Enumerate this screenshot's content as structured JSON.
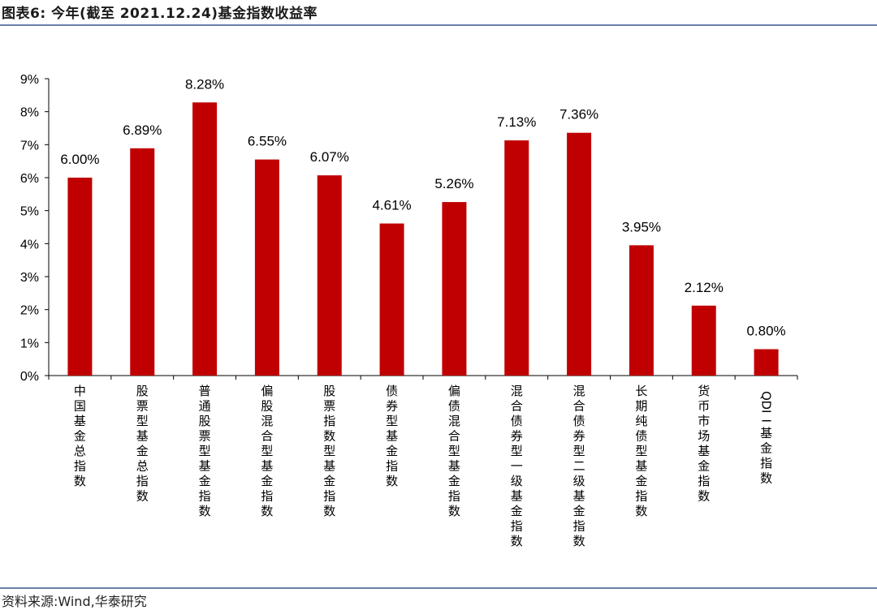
{
  "header": {
    "title": "图表6:  今年(截至 2021.12.24)基金指数收益率"
  },
  "source": {
    "text": "资料来源:Wind,华泰研究"
  },
  "colors": {
    "bar": "#c00000",
    "rule": "#6a7fa8",
    "axis": "#000000"
  },
  "chart_data": {
    "type": "bar",
    "title": "今年(截至 2021.12.24)基金指数收益率",
    "xlabel": "",
    "ylabel": "",
    "ylim": [
      0,
      9
    ],
    "yticks": [
      "0%",
      "1%",
      "2%",
      "3%",
      "4%",
      "5%",
      "6%",
      "7%",
      "8%",
      "9%"
    ],
    "grid": false,
    "legend": "none",
    "categories": [
      "中国基金总指数",
      "股票型基金总指数",
      "普通股票型基金指数",
      "偏股混合型基金指数",
      "股票指数型基金指数",
      "债券型基金指数",
      "偏债混合型基金指数",
      "混合债券型一级基金指数",
      "混合债券型二级基金指数",
      "长期纯债型基金指数",
      "货币市场基金指数",
      "QDII基金指数"
    ],
    "values": [
      6.0,
      6.89,
      8.28,
      6.55,
      6.07,
      4.61,
      5.26,
      7.13,
      7.36,
      3.95,
      2.12,
      0.8
    ],
    "labels": [
      "6.00%",
      "6.89%",
      "8.28%",
      "6.55%",
      "6.07%",
      "4.61%",
      "5.26%",
      "7.13%",
      "7.36%",
      "3.95%",
      "2.12%",
      "0.80%"
    ]
  }
}
